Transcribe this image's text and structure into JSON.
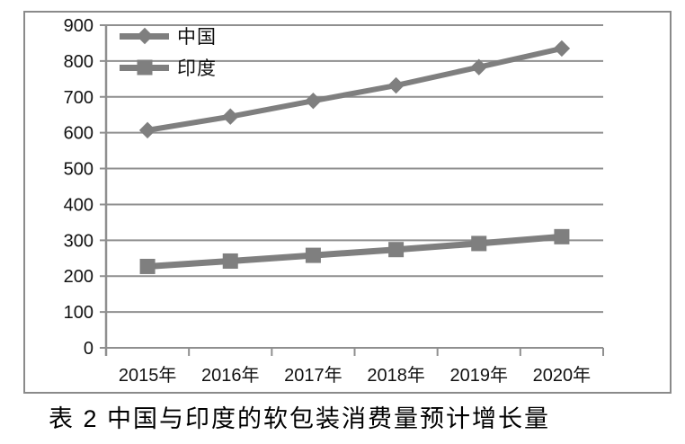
{
  "caption": "表 2 中国与印度的软包装消费量预计增长量",
  "colors": {
    "series": "#7f7f7f",
    "gridline": "#8f8f8f",
    "axis": "#8f8f8f",
    "frame": "#8a8a8a",
    "text": "#111111",
    "background": "#ffffff"
  },
  "chart_data": {
    "type": "line",
    "title": "表 2 中国与印度的软包装消费量预计增长量",
    "categories": [
      "2015年",
      "2016年",
      "2017年",
      "2018年",
      "2019年",
      "2020年"
    ],
    "series": [
      {
        "key": "china",
        "name": "中国",
        "marker": "diamond",
        "values": [
          607,
          645,
          689,
          732,
          783,
          835
        ]
      },
      {
        "key": "india",
        "name": "印度",
        "marker": "square",
        "values": [
          227,
          242,
          258,
          274,
          291,
          310
        ]
      }
    ],
    "xlabel": "",
    "ylabel": "",
    "ylim": [
      0,
      900
    ],
    "ytick_step": 100,
    "ytick_labels": [
      "0",
      "100",
      "200",
      "300",
      "400",
      "500",
      "600",
      "700",
      "800",
      "900"
    ],
    "grid": "horizontal",
    "legend_position": "top-left-inside",
    "legend_entries": [
      "中国",
      "印度"
    ]
  }
}
